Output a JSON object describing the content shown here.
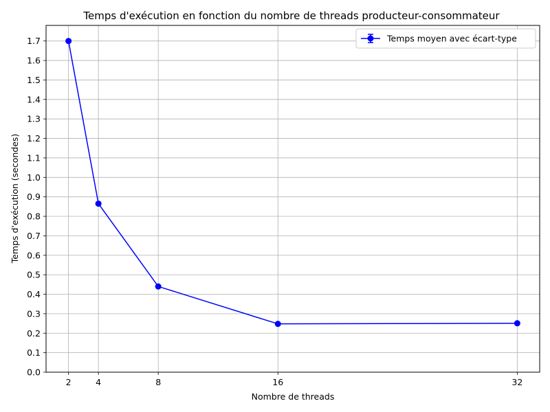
{
  "chart_data": {
    "type": "line",
    "title": "Temps d'exécution en fonction du nombre de threads producteur-consommateur",
    "xlabel": "Nombre de threads",
    "ylabel": "Temps d'exécution (secondes)",
    "xlim": [
      0.5,
      33.5
    ],
    "ylim": [
      0.0,
      1.78
    ],
    "x_ticks": [
      2,
      4,
      8,
      16,
      32
    ],
    "x_tick_labels": [
      "2",
      "4",
      "8",
      "16",
      "32"
    ],
    "y_ticks": [
      0.0,
      0.1,
      0.2,
      0.3,
      0.4,
      0.5,
      0.6,
      0.7,
      0.8,
      0.9,
      1.0,
      1.1,
      1.2,
      1.3,
      1.4,
      1.5,
      1.6,
      1.7
    ],
    "y_tick_labels": [
      "0.0",
      "0.1",
      "0.2",
      "0.3",
      "0.4",
      "0.5",
      "0.6",
      "0.7",
      "0.8",
      "0.9",
      "1.0",
      "1.1",
      "1.2",
      "1.3",
      "1.4",
      "1.5",
      "1.6",
      "1.7"
    ],
    "grid": true,
    "legend_position": "top-right",
    "series": [
      {
        "name": "Temps moyen avec écart-type",
        "color": "#0000ff",
        "marker": "circle",
        "error_bars": true,
        "x": [
          2,
          4,
          8,
          16,
          32
        ],
        "y": [
          1.7,
          0.865,
          0.44,
          0.248,
          0.251
        ],
        "yerr": [
          0.005,
          0.006,
          0.005,
          0.003,
          0.003
        ]
      }
    ]
  }
}
